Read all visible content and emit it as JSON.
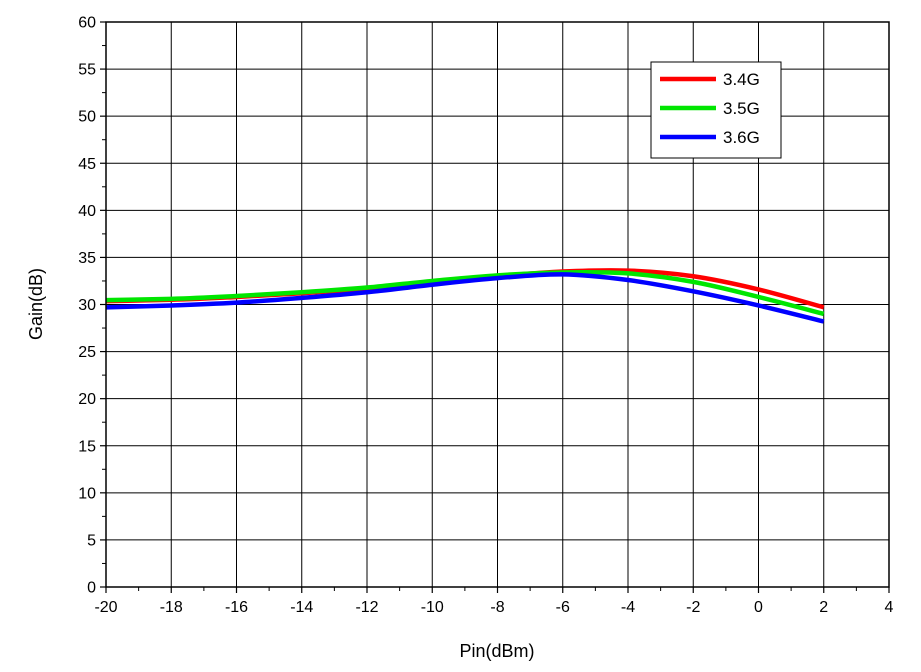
{
  "chart_data": {
    "type": "line",
    "xlabel": "Pin(dBm)",
    "ylabel": "Gain(dB)",
    "xlim": [
      -20,
      4
    ],
    "ylim": [
      0,
      60
    ],
    "xticks": [
      -20,
      -18,
      -16,
      -14,
      -12,
      -10,
      -8,
      -6,
      -4,
      -2,
      0,
      2,
      4
    ],
    "yticks": [
      0,
      5,
      10,
      15,
      20,
      25,
      30,
      35,
      40,
      45,
      50,
      55,
      60
    ],
    "grid": true,
    "legend_position": "top-right",
    "series": [
      {
        "name": "3.4G",
        "color": "#ff0000",
        "x": [
          -21,
          -18,
          -16,
          -14,
          -12,
          -10,
          -8,
          -6,
          -4,
          -2,
          0,
          2
        ],
        "y": [
          30.3,
          30.5,
          30.8,
          31.2,
          31.7,
          32.4,
          33.0,
          33.5,
          33.6,
          33.0,
          31.6,
          29.7
        ]
      },
      {
        "name": "3.5G",
        "color": "#00e600",
        "x": [
          -21,
          -18,
          -16,
          -14,
          -12,
          -10,
          -8,
          -6,
          -4,
          -2,
          0,
          2
        ],
        "y": [
          30.4,
          30.6,
          30.9,
          31.3,
          31.8,
          32.5,
          33.1,
          33.4,
          33.3,
          32.4,
          30.8,
          29.0
        ]
      },
      {
        "name": "3.6G",
        "color": "#0000ff",
        "x": [
          -21,
          -18,
          -16,
          -14,
          -12,
          -10,
          -8,
          -6,
          -4,
          -2,
          0,
          2
        ],
        "y": [
          29.6,
          29.9,
          30.2,
          30.7,
          31.3,
          32.1,
          32.8,
          33.2,
          32.6,
          31.4,
          29.9,
          28.2
        ]
      }
    ]
  }
}
